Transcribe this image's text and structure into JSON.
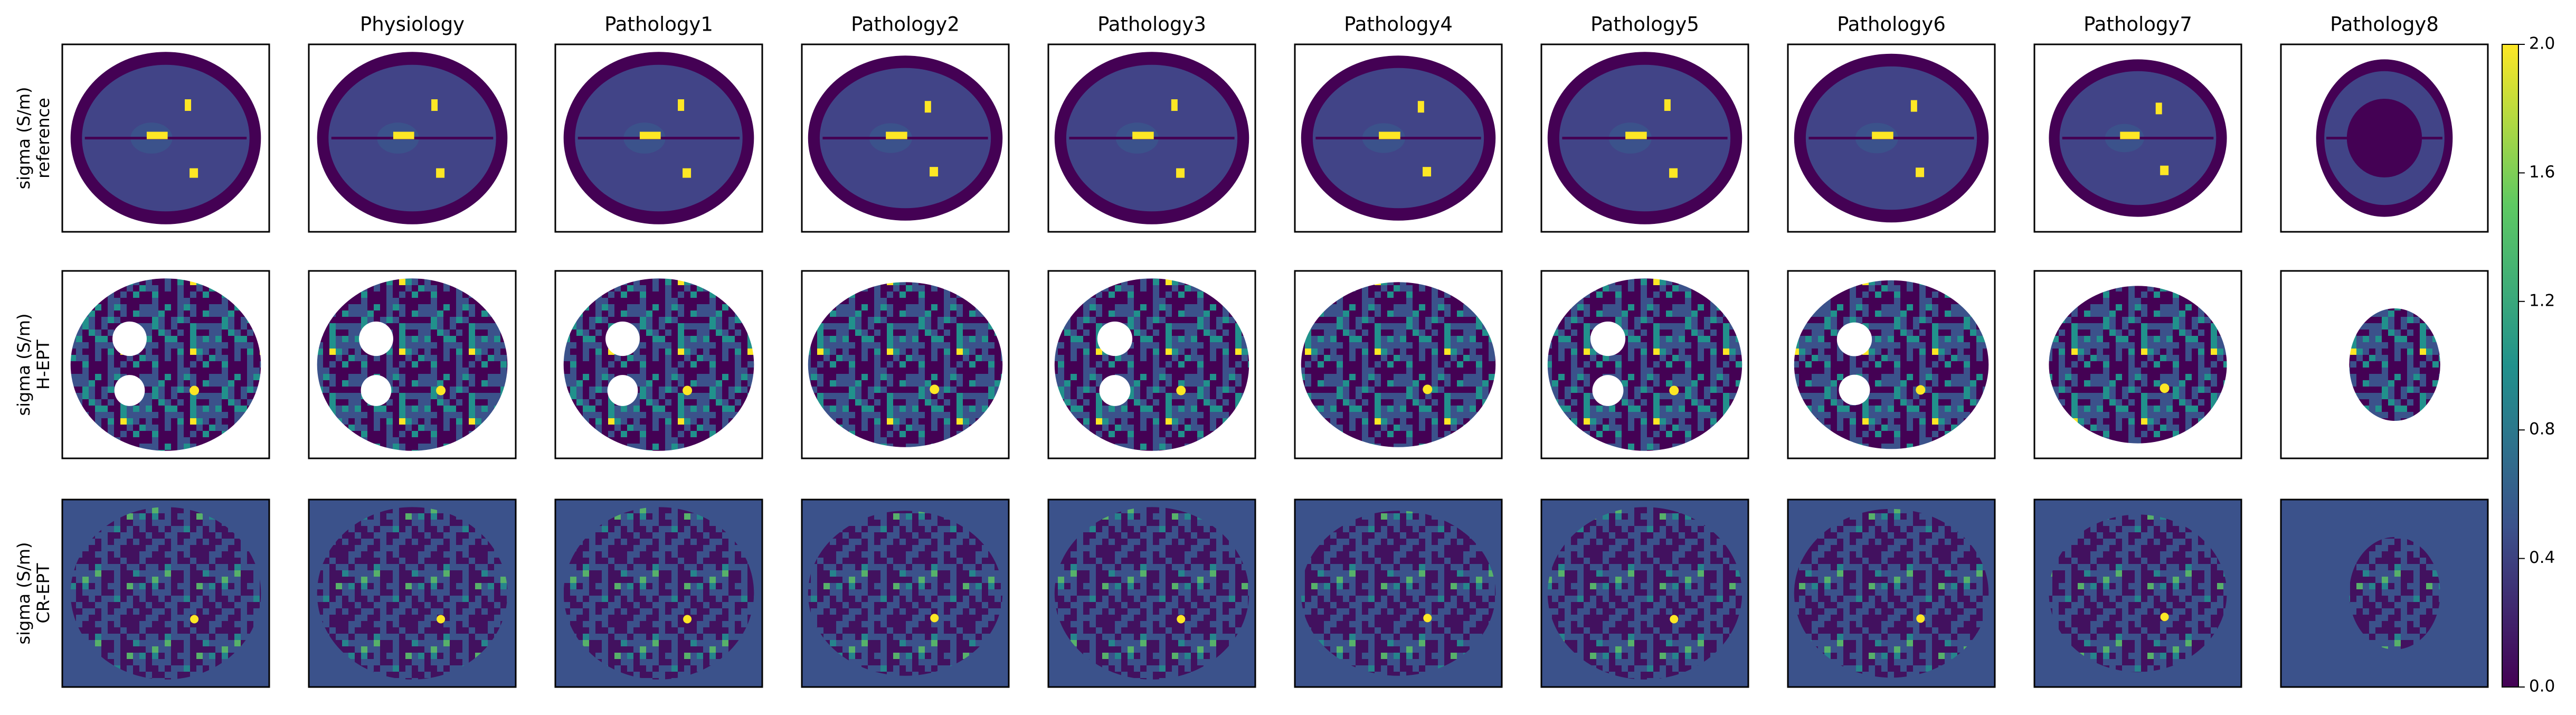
{
  "column_titles": [
    "Physiology",
    "Pathology1",
    "Pathology2",
    "Pathology3",
    "Pathology4",
    "Pathology5",
    "Pathology6",
    "Pathology7",
    "Pathology8"
  ],
  "row_labels": [
    {
      "quantity": "sigma (S/m)",
      "method": "reference"
    },
    {
      "quantity": "sigma (S/m)",
      "method": "H-EPT"
    },
    {
      "quantity": "sigma (S/m)",
      "method": "CR-EPT"
    }
  ],
  "colorbar": {
    "lim": [
      0,
      2
    ],
    "ticks": [
      {
        "value": 0,
        "label": "0.0"
      },
      {
        "value": 0.4,
        "label": "0.4"
      },
      {
        "value": 0.8,
        "label": "0.8"
      },
      {
        "value": 1.2,
        "label": "1.2"
      },
      {
        "value": 1.6,
        "label": "1.6"
      },
      {
        "value": 2,
        "label": "2.0"
      }
    ],
    "colors": [
      "#440154",
      "#3b528b",
      "#21918c",
      "#5ec962",
      "#fde725"
    ]
  }
}
